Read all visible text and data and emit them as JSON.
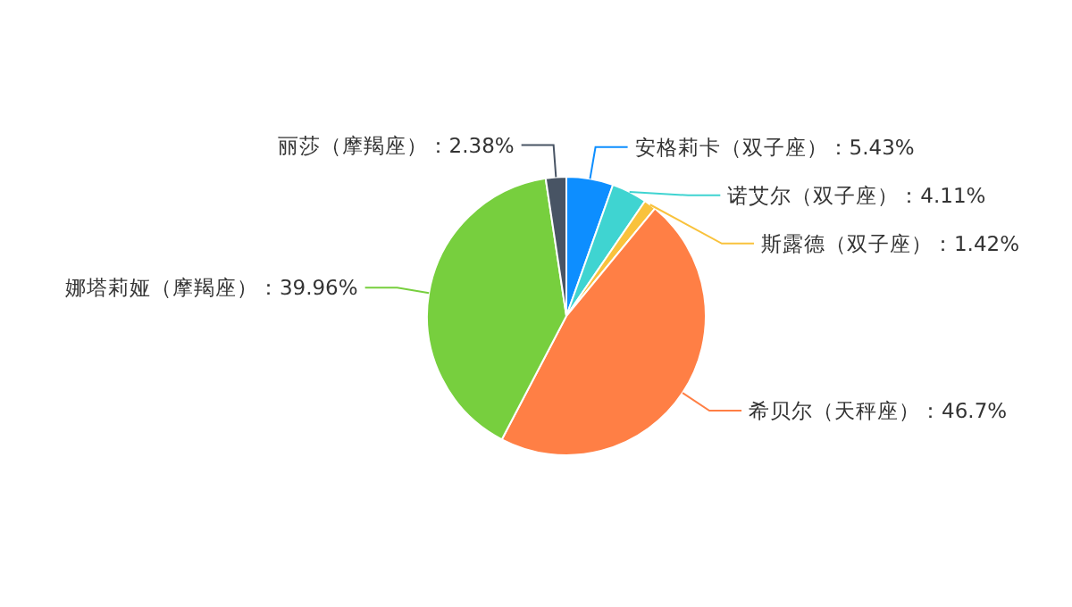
{
  "chart_data": {
    "type": "pie",
    "categories": [
      "安格莉卡（双子座）",
      "诺艾尔（双子座）",
      "斯露德（双子座）",
      "希贝尔（天秤座）",
      "娜塔莉娅（摩羯座）",
      "丽莎（摩羯座）"
    ],
    "values": [
      5.43,
      4.11,
      1.42,
      46.7,
      39.96,
      2.38
    ],
    "value_labels": [
      "5.43%",
      "4.11%",
      "1.42%",
      "46.7%",
      "39.96%",
      "2.38%"
    ],
    "colors": [
      "#0d8eff",
      "#3fd4d1",
      "#f9c23c",
      "#ff7f45",
      "#77cf3e",
      "#485464"
    ]
  }
}
